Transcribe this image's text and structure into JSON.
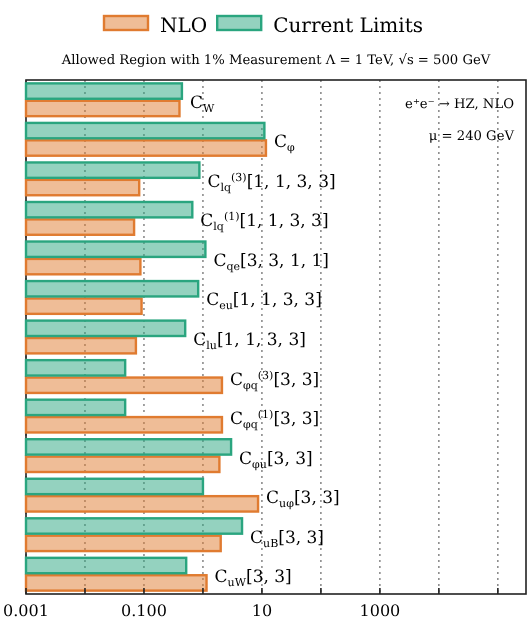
{
  "chart_data": {
    "type": "bar",
    "orientation": "horizontal",
    "log": "x",
    "subtitle": "Allowed Region with 1% Measurement Λ = 1 TeV, √s = 500 GeV",
    "categories": [
      "C$_{W}$",
      "C$_{φ}$",
      "C$_{lq}$$^{(3)}$[1, 1, 3, 3]",
      "C$_{lq}$$^{(1)}$[1, 1, 3, 3]",
      "C$_{qe}$[3, 3, 1, 1]",
      "C$_{eu}$[1, 1, 3, 3]",
      "C$_{lu}$[1, 1, 3, 3]",
      "C$_{φq}$$^{(3)}$[3, 3]",
      "C$_{φq}$$^{(1)}$[3, 3]",
      "C$_{φu}$[3, 3]",
      "C$_{uφ}$[3, 3]",
      "C$_{uB}$[3, 3]",
      "C$_{uW}$[3, 3]"
    ],
    "series": [
      {
        "name": "NLO",
        "color": "#e07b30",
        "values": [
          0.4,
          11.7,
          0.083,
          0.068,
          0.087,
          0.091,
          0.073,
          2.1,
          2.1,
          1.9,
          8.6,
          2.0,
          1.15
        ]
      },
      {
        "name": "Current Limits",
        "color": "#2aa57f",
        "values": [
          0.44,
          11,
          0.87,
          0.66,
          1.1,
          0.83,
          0.5,
          0.048,
          0.048,
          3.0,
          1.0,
          4.6,
          0.52
        ]
      }
    ],
    "xlim": [
      0.001,
      300000
    ],
    "xticks": [
      0.001,
      {
        "value": 0.01,
        "label": null
      },
      {
        "value": 0.1,
        "label": "0.100"
      },
      {
        "value": 1,
        "label": null
      },
      10,
      {
        "value": 100,
        "label": null
      },
      1000,
      {
        "value": 10000,
        "label": null
      },
      {
        "value": 100000,
        "label": null
      }
    ],
    "grid": "x",
    "legend": "top",
    "annotations": [
      "e⁺e⁻ → HZ, NLO",
      "μ = 240 GeV"
    ]
  }
}
